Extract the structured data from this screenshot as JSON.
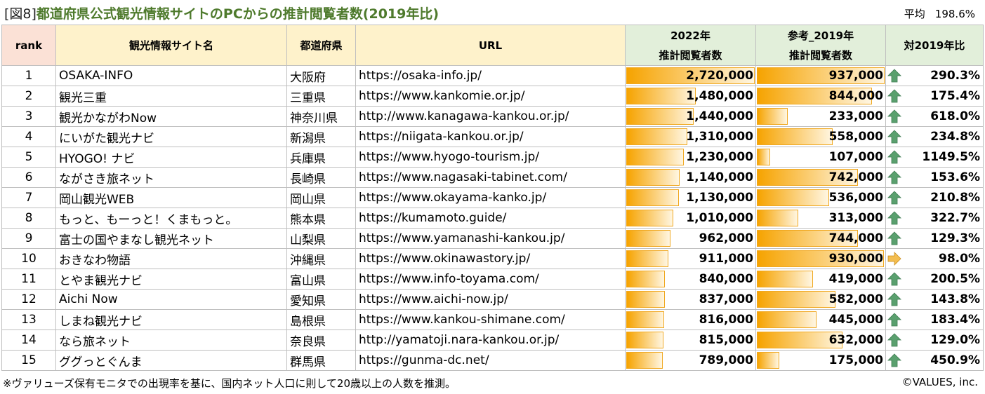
{
  "title": {
    "tag": "[図8]",
    "text": "都道府県公式観光情報サイトのPCからの推計閲覧者数(2019年比)"
  },
  "average": {
    "label": "平均",
    "value": "198.6%"
  },
  "headers": {
    "rank": "rank",
    "site": "観光情報サイト名",
    "pref": "都道府県",
    "url": "URL",
    "y2022_line1": "2022年",
    "y2022_line2": "推計閲覧者数",
    "y2019_line1": "参考_2019年",
    "y2019_line2": "推計閲覧者数",
    "ratio": "対2019年比"
  },
  "colors": {
    "bar": "#f6a300",
    "up_arrow": "#5aa06e",
    "right_arrow": "#f0b040",
    "title_green": "#4e7a2c"
  },
  "bar_scale": {
    "y2022_max": 2720000,
    "y2019_max": 937000
  },
  "rows": [
    {
      "rank": "1",
      "site": "OSAKA-INFO",
      "pref": "大阪府",
      "url": "https://osaka-info.jp/",
      "v2022": 2720000,
      "v2022_text": "2,720,000",
      "v2019": 937000,
      "v2019_text": "937,000",
      "trend": "up-arrow-icon",
      "ratio": "290.3%"
    },
    {
      "rank": "2",
      "site": "観光三重",
      "pref": "三重県",
      "url": "https://www.kankomie.or.jp/",
      "v2022": 1480000,
      "v2022_text": "1,480,000",
      "v2019": 844000,
      "v2019_text": "844,000",
      "trend": "up-arrow-icon",
      "ratio": "175.4%"
    },
    {
      "rank": "3",
      "site": "観光かながわNow",
      "pref": "神奈川県",
      "url": "http://www.kanagawa-kankou.or.jp/",
      "v2022": 1440000,
      "v2022_text": "1,440,000",
      "v2019": 233000,
      "v2019_text": "233,000",
      "trend": "up-arrow-icon",
      "ratio": "618.0%"
    },
    {
      "rank": "4",
      "site": "にいがた観光ナビ",
      "pref": "新潟県",
      "url": "https://niigata-kankou.or.jp/",
      "v2022": 1310000,
      "v2022_text": "1,310,000",
      "v2019": 558000,
      "v2019_text": "558,000",
      "trend": "up-arrow-icon",
      "ratio": "234.8%"
    },
    {
      "rank": "5",
      "site": "HYOGO! ナビ",
      "pref": "兵庫県",
      "url": "https://www.hyogo-tourism.jp/",
      "v2022": 1230000,
      "v2022_text": "1,230,000",
      "v2019": 107000,
      "v2019_text": "107,000",
      "trend": "up-arrow-icon",
      "ratio": "1149.5%"
    },
    {
      "rank": "6",
      "site": "ながさき旅ネット",
      "pref": "長崎県",
      "url": "https://www.nagasaki-tabinet.com/",
      "v2022": 1140000,
      "v2022_text": "1,140,000",
      "v2019": 742000,
      "v2019_text": "742,000",
      "trend": "up-arrow-icon",
      "ratio": "153.6%"
    },
    {
      "rank": "7",
      "site": "岡山観光WEB",
      "pref": "岡山県",
      "url": "https://www.okayama-kanko.jp/",
      "v2022": 1130000,
      "v2022_text": "1,130,000",
      "v2019": 536000,
      "v2019_text": "536,000",
      "trend": "up-arrow-icon",
      "ratio": "210.8%"
    },
    {
      "rank": "8",
      "site": "もっと、もーっと！くまもっと。",
      "pref": "熊本県",
      "url": "https://kumamoto.guide/",
      "v2022": 1010000,
      "v2022_text": "1,010,000",
      "v2019": 313000,
      "v2019_text": "313,000",
      "trend": "up-arrow-icon",
      "ratio": "322.7%"
    },
    {
      "rank": "9",
      "site": "富士の国やまなし観光ネット",
      "pref": "山梨県",
      "url": "https://www.yamanashi-kankou.jp/",
      "v2022": 962000,
      "v2022_text": "962,000",
      "v2019": 744000,
      "v2019_text": "744,000",
      "trend": "up-arrow-icon",
      "ratio": "129.3%"
    },
    {
      "rank": "10",
      "site": "おきなわ物語",
      "pref": "沖縄県",
      "url": "https://www.okinawastory.jp/",
      "v2022": 911000,
      "v2022_text": "911,000",
      "v2019": 930000,
      "v2019_text": "930,000",
      "trend": "right-arrow-icon",
      "ratio": "98.0%"
    },
    {
      "rank": "11",
      "site": "とやま観光ナビ",
      "pref": "富山県",
      "url": "https://www.info-toyama.com/",
      "v2022": 840000,
      "v2022_text": "840,000",
      "v2019": 419000,
      "v2019_text": "419,000",
      "trend": "up-arrow-icon",
      "ratio": "200.5%"
    },
    {
      "rank": "12",
      "site": "Aichi Now",
      "pref": "愛知県",
      "url": "https://www.aichi-now.jp/",
      "v2022": 837000,
      "v2022_text": "837,000",
      "v2019": 582000,
      "v2019_text": "582,000",
      "trend": "up-arrow-icon",
      "ratio": "143.8%"
    },
    {
      "rank": "13",
      "site": "しまね観光ナビ",
      "pref": "島根県",
      "url": "https://www.kankou-shimane.com/",
      "v2022": 816000,
      "v2022_text": "816,000",
      "v2019": 445000,
      "v2019_text": "445,000",
      "trend": "up-arrow-icon",
      "ratio": "183.4%"
    },
    {
      "rank": "14",
      "site": "なら旅ネット",
      "pref": "奈良県",
      "url": "http://yamatoji.nara-kankou.or.jp/",
      "v2022": 815000,
      "v2022_text": "815,000",
      "v2019": 632000,
      "v2019_text": "632,000",
      "trend": "up-arrow-icon",
      "ratio": "129.0%"
    },
    {
      "rank": "15",
      "site": "ググっとぐんま",
      "pref": "群馬県",
      "url": "https://gunma-dc.net/",
      "v2022": 789000,
      "v2022_text": "789,000",
      "v2019": 175000,
      "v2019_text": "175,000",
      "trend": "up-arrow-icon",
      "ratio": "450.9%"
    }
  ],
  "footnote": "※ヴァリューズ保有モニタでの出現率を基に、国内ネット人口に則して20歳以上の人数を推測。",
  "credit": "©VALUES, inc."
}
